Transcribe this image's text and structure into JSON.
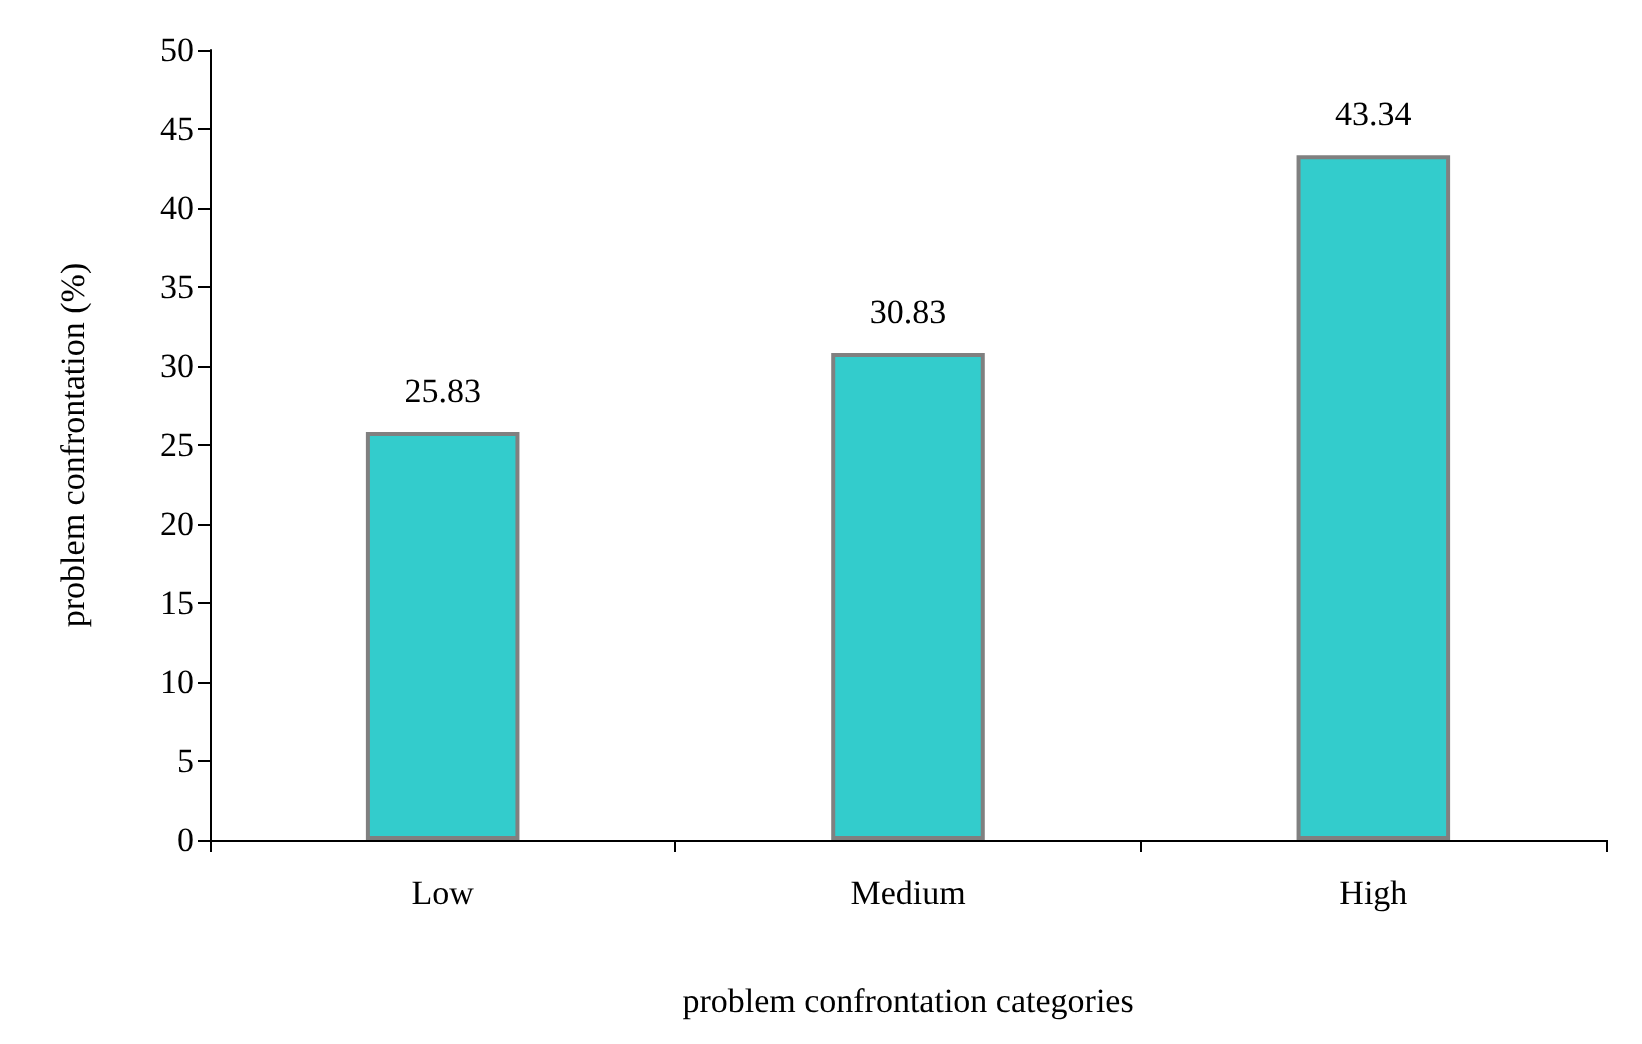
{
  "chart_data": {
    "type": "bar",
    "xlabel": "problem confrontation categories",
    "ylabel": "problem confrontation (%)",
    "categories": [
      "Low",
      "Medium",
      "High"
    ],
    "values": [
      25.83,
      30.83,
      43.34
    ],
    "color": "#33cccc",
    "ylim": [
      0,
      50
    ],
    "yticks": [
      0,
      5,
      10,
      15,
      20,
      25,
      30,
      35,
      40,
      45,
      50
    ],
    "grid": false,
    "data_labels": true
  }
}
